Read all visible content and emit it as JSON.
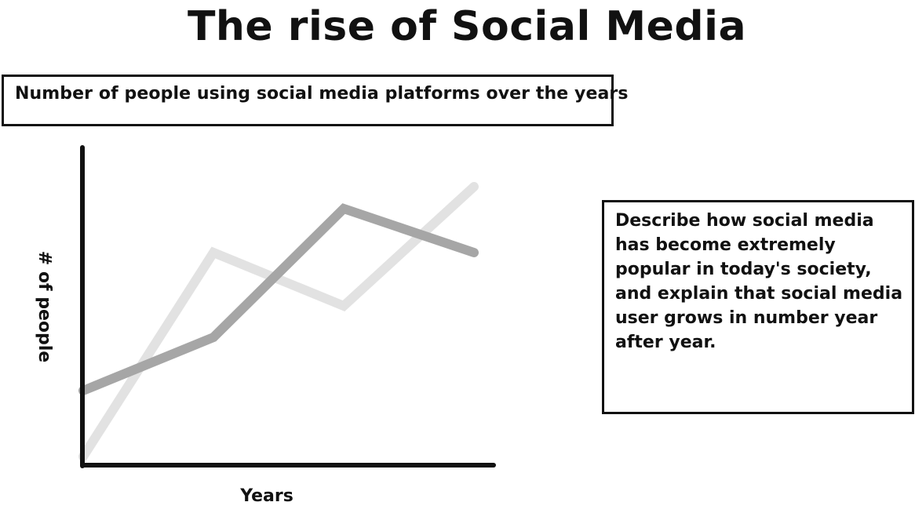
{
  "title": "The rise of Social Media",
  "subtitle_box": {
    "text": "Number of people using social media platforms over the years"
  },
  "note_box": {
    "text": "Describe how social media has become extremely popular in today's society, and explain that social media user grows in number year after year."
  },
  "chart_data": {
    "type": "line",
    "xlabel": "Years",
    "ylabel": "# of people",
    "x": [
      0,
      1,
      2,
      3
    ],
    "ylim": [
      0,
      100
    ],
    "series": [
      {
        "values": [
          23,
          40,
          81,
          67
        ],
        "color": "#a6a6a6"
      },
      {
        "values": [
          2,
          67,
          50,
          88
        ],
        "color": "#e2e2e2"
      }
    ]
  }
}
